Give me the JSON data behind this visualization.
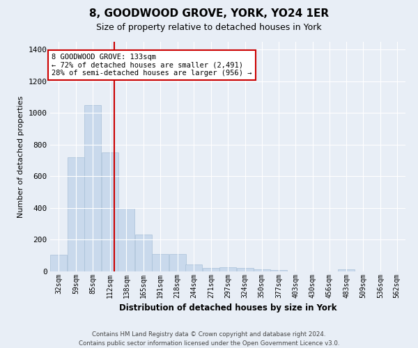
{
  "title": "8, GOODWOOD GROVE, YORK, YO24 1ER",
  "subtitle": "Size of property relative to detached houses in York",
  "xlabel": "Distribution of detached houses by size in York",
  "ylabel": "Number of detached properties",
  "bar_color": "#c9d9ec",
  "bar_edge_color": "#a8c0d8",
  "background_color": "#e8eef6",
  "plot_bg_color": "#e8eef6",
  "grid_color": "#ffffff",
  "annotation_line_color": "#cc0000",
  "annotation_text": "8 GOODWOOD GROVE: 133sqm\n← 72% of detached houses are smaller (2,491)\n28% of semi-detached houses are larger (956) →",
  "annotation_box_color": "#ffffff",
  "annotation_box_edge": "#cc0000",
  "property_size": 133,
  "categories": [
    "32sqm",
    "59sqm",
    "85sqm",
    "112sqm",
    "138sqm",
    "165sqm",
    "191sqm",
    "218sqm",
    "244sqm",
    "271sqm",
    "297sqm",
    "324sqm",
    "350sqm",
    "377sqm",
    "403sqm",
    "430sqm",
    "456sqm",
    "483sqm",
    "509sqm",
    "536sqm",
    "562sqm"
  ],
  "bin_edges": [
    32,
    59,
    85,
    112,
    138,
    165,
    191,
    218,
    244,
    271,
    297,
    324,
    350,
    377,
    403,
    430,
    456,
    483,
    509,
    536,
    562
  ],
  "values": [
    105,
    720,
    1050,
    750,
    400,
    235,
    110,
    110,
    45,
    20,
    25,
    20,
    15,
    10,
    0,
    0,
    0,
    15,
    0,
    0,
    0
  ],
  "ylim": [
    0,
    1450
  ],
  "yticks": [
    0,
    200,
    400,
    600,
    800,
    1000,
    1200,
    1400
  ],
  "footer": "Contains HM Land Registry data © Crown copyright and database right 2024.\nContains public sector information licensed under the Open Government Licence v3.0.",
  "figsize": [
    6.0,
    5.0
  ],
  "dpi": 100
}
